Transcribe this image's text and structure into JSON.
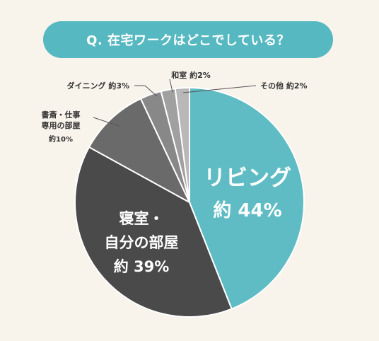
{
  "question": "Q. 在宅ワークはどこでしている？",
  "colors": {
    "background": "#f8f4ec",
    "banner": "#56b8c1",
    "living": "#5fbcc4",
    "bedroom": "#4a4a4a",
    "study": "#6a6a6a",
    "dining": "#888888",
    "japanese_room": "#a0a0a0",
    "other": "#b8b8b8"
  },
  "chart_data": {
    "type": "pie",
    "title": "Q. 在宅ワークはどこでしている？",
    "start": "top, clockwise",
    "slices": [
      {
        "key": "living",
        "label": "リビング",
        "value_text": "約 44%",
        "value": 44
      },
      {
        "key": "bedroom",
        "label": "寝室・自分の部屋",
        "value_text": "約 39%",
        "value": 39
      },
      {
        "key": "study",
        "label": "書斎・仕事専用の部屋",
        "value_text": "約10%",
        "value": 10
      },
      {
        "key": "dining",
        "label": "ダイニング",
        "value_text": "約3%",
        "value": 3
      },
      {
        "key": "japanese_room",
        "label": "和室",
        "value_text": "約2%",
        "value": 2
      },
      {
        "key": "other",
        "label": "その他",
        "value_text": "約2%",
        "value": 2
      }
    ],
    "label_lines": {
      "living_name": "リビング",
      "living_pct": "約 44%",
      "bedroom_line1": "寝室・",
      "bedroom_line2": "自分の部屋",
      "bedroom_pct": "約 39%",
      "study_line1": "書斎・仕事",
      "study_line2": "専用の部屋",
      "study_pct": "約10%",
      "dining": "ダイニング 約3%",
      "japanese_room": "和室 約2%",
      "other": "その他 約2%"
    }
  }
}
